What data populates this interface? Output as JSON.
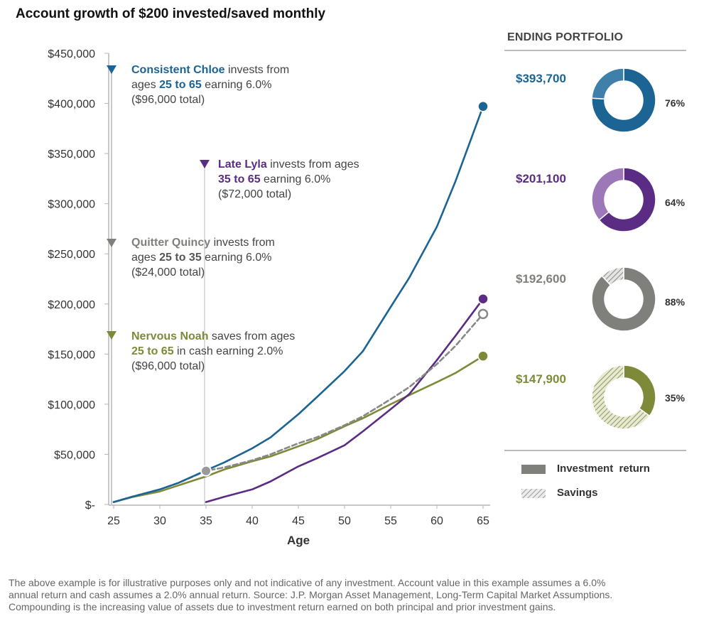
{
  "title": "Account growth of $200 invested/saved monthly",
  "portfolio": {
    "heading": "ENDING PORTFOLIO",
    "items": [
      {
        "name": "Consistent Chloe",
        "value": "$393,700",
        "pct_label": "76%",
        "investment_return_pct": 76,
        "color": "#1b6494",
        "savings_fill": "#3f80aa"
      },
      {
        "name": "Late Lyla",
        "value": "$201,100",
        "pct_label": "64%",
        "investment_return_pct": 64,
        "color": "#5b2c83",
        "savings_fill": "#9c78b9"
      },
      {
        "name": "Quitter Quincy",
        "value": "$192,600",
        "pct_label": "88%",
        "investment_return_pct": 88,
        "color": "#7f807c",
        "savings_fill": "#7f807c"
      },
      {
        "name": "Nervous Noah",
        "value": "$147,900",
        "pct_label": "35%",
        "investment_return_pct": 35,
        "color": "#7e8a39",
        "savings_fill": "#7e8a39"
      }
    ],
    "legend": {
      "investment_return": "Investment  return",
      "savings": "Savings"
    }
  },
  "annotations": {
    "chloe": {
      "name": "Consistent Chloe",
      "t1": " invests from",
      "t2a": "ages ",
      "range": "25 to 65",
      "t2b": " earning 6.0%",
      "t3": "($96,000 total)"
    },
    "lyla": {
      "name": "Late Lyla",
      "t1": " invests from ages",
      "range": "35 to 65",
      "t2b": " earning 6.0%",
      "t3": "($72,000 total)"
    },
    "quincy": {
      "name": "Quitter Quincy",
      "t1": " invests from",
      "t2a": "ages ",
      "range": "25 to 35",
      "t2b": " earning 6.0%",
      "t3": "($24,000 total)"
    },
    "noah": {
      "name": "Nervous Noah",
      "t1": " saves from ages",
      "range": "25 to 65",
      "t2b": " in cash earning 2.0%",
      "t3": "($96,000 total)"
    }
  },
  "footnote": {
    "line1": "The above example is for illustrative purposes only and not indicative of any investment. Account value in this example assumes a 6.0%",
    "line2": "annual return and cash assumes a 2.0% annual return. Source: J.P. Morgan Asset Management, Long-Term Capital Market Assumptions.",
    "line3": "Compounding is the increasing value of assets due to investment return earned on both principal and prior investment gains."
  },
  "chart_data": {
    "type": "line",
    "title": "Account growth of $200 invested/saved monthly",
    "xlabel": "Age",
    "ylabel": "",
    "xlim": [
      25,
      65
    ],
    "ylim": [
      0,
      450000
    ],
    "x_ticks": [
      25,
      30,
      35,
      40,
      45,
      50,
      55,
      60,
      65
    ],
    "y_ticks": [
      0,
      50000,
      100000,
      150000,
      200000,
      250000,
      300000,
      350000,
      400000,
      450000
    ],
    "y_tick_labels": [
      "$-",
      "$50,000",
      "$100,000",
      "$150,000",
      "$200,000",
      "$250,000",
      "$300,000",
      "$350,000",
      "$400,000",
      "$450,000"
    ],
    "series": [
      {
        "name": "Consistent Chloe",
        "color": "#1b6494",
        "dashed": false,
        "x": [
          25,
          27,
          30,
          32,
          35,
          37,
          40,
          42,
          45,
          47,
          50,
          52,
          55,
          57,
          60,
          62,
          65
        ],
        "y": [
          2400,
          7700,
          15000,
          21500,
          34000,
          42000,
          56000,
          67000,
          90000,
          107000,
          133000,
          153000,
          197000,
          226000,
          277000,
          322000,
          397000
        ],
        "end_marker": "filled"
      },
      {
        "name": "Late Lyla",
        "color": "#5b2c83",
        "dashed": false,
        "x": [
          35,
          37,
          40,
          42,
          45,
          47,
          50,
          52,
          55,
          57,
          60,
          62,
          65
        ],
        "y": [
          2400,
          7700,
          15000,
          23000,
          38000,
          46000,
          59000,
          73000,
          95000,
          110000,
          144000,
          168000,
          205000
        ],
        "end_marker": "filled"
      },
      {
        "name": "Quitter Quincy",
        "color": "#888888",
        "dashed": true,
        "x": [
          25,
          27,
          30,
          32,
          35,
          37,
          40,
          42,
          45,
          47,
          50,
          52,
          55,
          57,
          60,
          62,
          65
        ],
        "y": [
          2400,
          7700,
          15000,
          21500,
          33500,
          37000,
          44000,
          50000,
          61000,
          67000,
          79000,
          88000,
          105000,
          117000,
          140000,
          158000,
          190000
        ],
        "end_marker": "hollow",
        "mid_marker_x": 35
      },
      {
        "name": "Nervous Noah",
        "color": "#7e8a39",
        "dashed": false,
        "x": [
          25,
          27,
          30,
          32,
          35,
          37,
          40,
          42,
          45,
          47,
          50,
          52,
          55,
          57,
          60,
          62,
          65
        ],
        "y": [
          2400,
          7400,
          13000,
          19000,
          28000,
          35000,
          43000,
          48000,
          58000,
          65000,
          78000,
          86000,
          100000,
          109000,
          122000,
          131000,
          148000
        ],
        "end_marker": "filled"
      }
    ]
  }
}
